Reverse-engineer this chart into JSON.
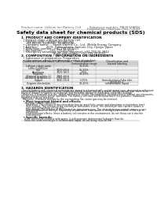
{
  "header_left": "Product name: Lithium Ion Battery Cell",
  "header_right_line1": "Reference number: MB3833APFV",
  "header_right_line2": "Established / Revision: Dec.7.2009",
  "title": "Safety data sheet for chemical products (SDS)",
  "section1_title": "1. PRODUCT AND COMPANY IDENTIFICATION",
  "section1_lines": [
    "  • Product name: Lithium Ion Battery Cell",
    "  • Product code: Cylindrical-type cell",
    "      (84-86500, 84-86500, 84-86500A)",
    "  • Company name:     Sanyo Electric Co., Ltd., Mobile Energy Company",
    "  • Address:          2001, Kaminakaian, Sumoto-City, Hyogo, Japan",
    "  • Telephone number:  +81-799-26-4111",
    "  • Fax number:        +81-799-26-4121",
    "  • Emergency telephone number (daytime): +81-799-26-3842",
    "                                   (Night and holiday): +81-799-26-4101"
  ],
  "section2_title": "2. COMPOSITION / INFORMATION ON INGREDIENTS",
  "section2_intro": "  • Substance or preparation: Preparation",
  "section2_table_title": "  • Information about the chemical nature of product:",
  "table_header_row1": [
    "Chemical/chemical name",
    "CAS number",
    "Concentration /",
    "Classification and"
  ],
  "table_header_row2": [
    "",
    "",
    "Concentration range",
    "hazard labeling"
  ],
  "table_rows": [
    [
      "Lithium cobalt oxide",
      "-",
      "30-60%",
      "-"
    ],
    [
      "(LiMn-Co/NiO2x)",
      "",
      "",
      ""
    ],
    [
      "Iron",
      "7439-89-6",
      "15-20%",
      "-"
    ],
    [
      "Aluminum",
      "7429-90-5",
      "2-5%",
      "-"
    ],
    [
      "Graphite",
      "",
      "10-25%",
      ""
    ],
    [
      "(Natural graphite-1)",
      "7782-42-5",
      "",
      ""
    ],
    [
      "(Artificial graphite-1)",
      "7782-42-5",
      "",
      ""
    ],
    [
      "Copper",
      "7440-50-8",
      "5-15%",
      "Sensitization of the skin"
    ],
    [
      "",
      "",
      "",
      "group No.2"
    ],
    [
      "Organic electrolyte",
      "-",
      "10-20%",
      "Inflammable liquid"
    ]
  ],
  "section3_title": "3. HAZARDS IDENTIFICATION",
  "section3_para1": "  For the battery cell, chemical materials are stored in a hermetically sealed metal case, designed to withstand",
  "section3_para2": "temperatures and pressure-stress conditions during normal use. As a result, during normal use, there is no",
  "section3_para3": "physical danger of ignition or explosion and therefore danger of hazardous materials leakage.",
  "section3_para4": "  However, if exposed to a fire, added mechanical shocks, decomposed, shorted electric without any measures,",
  "section3_para5": "the gas release valve will be operated. The battery cell case will be breached if fire patterns, hazardous",
  "section3_para6": "materials may be released.",
  "section3_para7": "  Moreover, if heated strongly by the surrounding fire, some gas may be emitted.",
  "section3_bullet1": "  • Most important hazard and effects:",
  "section3_human": "    Human health effects:",
  "section3_h1": "      Inhalation: The release of the electrolyte has an anesthetic action and stimulates a respiratory tract.",
  "section3_h2": "      Skin contact: The release of the electrolyte stimulates a skin. The electrolyte skin contact causes a",
  "section3_h3": "      sore and stimulation on the skin.",
  "section3_h4": "      Eye contact: The release of the electrolyte stimulates eyes. The electrolyte eye contact causes a sore",
  "section3_h5": "      and stimulation on the eye. Especially, a substance that causes a strong inflammation of the eye is",
  "section3_h6": "      contained.",
  "section3_h7": "      Environmental effects: Since a battery cell remains in the environment, do not throw out it into the",
  "section3_h8": "      environment.",
  "section3_specific": "  • Specific hazards:",
  "section3_s1": "    If the electrolyte contacts with water, it will generate detrimental hydrogen fluoride.",
  "section3_s2": "    Since the used electrolyte is inflammable liquid, do not bring close to fire.",
  "bg_color": "#ffffff",
  "text_color": "#1a1a1a",
  "header_color": "#666666",
  "title_color": "#000000",
  "line_color": "#999999",
  "table_border": "#aaaaaa",
  "table_header_bg": "#d8d8d8",
  "table_row_bg1": "#f2f2f2",
  "table_row_bg2": "#ffffff"
}
